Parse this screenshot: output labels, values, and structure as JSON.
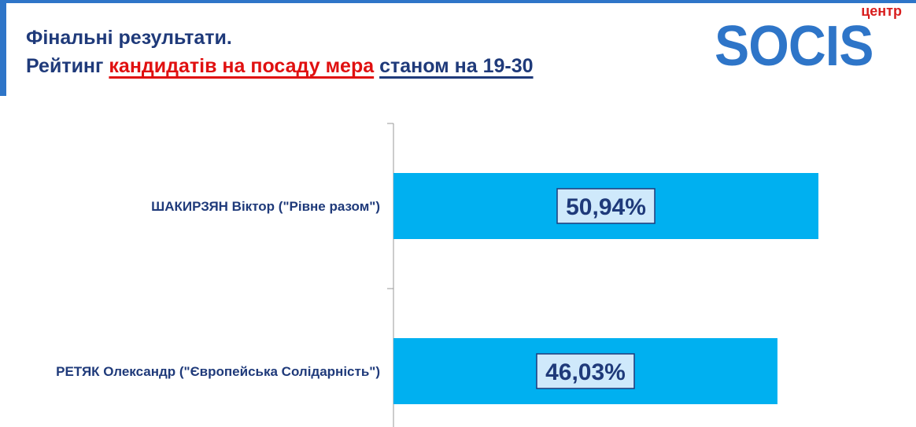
{
  "header": {
    "title_line1": "Фінальні результати.",
    "title_line2_part1": "Рейтинг ",
    "title_line2_part2": "кандидатів на посаду мера",
    "title_line2_part3": " ",
    "title_line2_part4": "станом на 19-30"
  },
  "logo": {
    "small": "центр",
    "main": "SOCIS"
  },
  "chart_data": {
    "type": "bar",
    "orientation": "horizontal",
    "categories": [
      "ШАКИРЗЯН Віктор (\"Рівне разом\")",
      "РЕТЯК Олександр (\"Європейська Солідарність\")"
    ],
    "values": [
      50.94,
      46.03
    ],
    "data_labels": [
      "50,94%",
      "46,03%"
    ],
    "xlim": [
      0,
      100
    ],
    "grid": false,
    "legend": "none",
    "colors": {
      "bar": "#00b0f0",
      "label_box": "#cfe9fb",
      "text": "#1f3a7a",
      "accent": "#e01010",
      "brand": "#2e75c8"
    }
  }
}
